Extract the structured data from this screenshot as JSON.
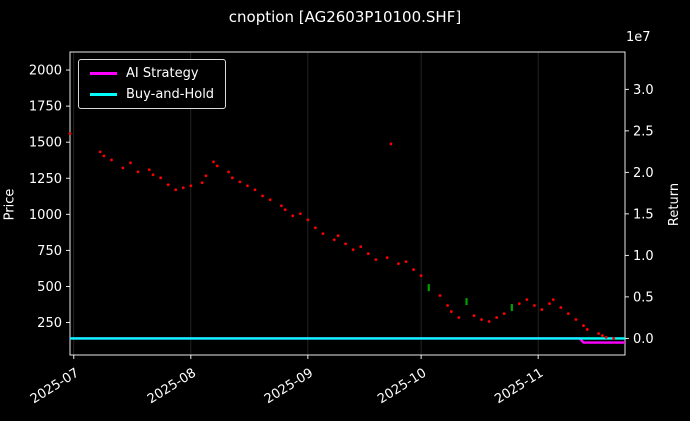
{
  "figure": {
    "title": "cnoption [AG2603P10100.SHF]",
    "background": "#000000",
    "text_color": "#ffffff"
  },
  "axes": {
    "left_label": "Price",
    "right_label": "Return",
    "offset_text": "1e7"
  },
  "legend": {
    "position": "upper-left",
    "items": [
      {
        "label": "AI Strategy",
        "color": "#ff00ff"
      },
      {
        "label": "Buy-and-Hold",
        "color": "#00ffff"
      }
    ]
  },
  "chart_data": {
    "type": "scatter",
    "title": "cnoption [AG2603P10100.SHF]",
    "xlabel": "",
    "ylabel_left": "Price",
    "ylabel_right": "Return",
    "right_axis_multiplier": "1e7",
    "grid": "vertical-faint",
    "grid_color": "#333333",
    "legend_position": "upper-left",
    "x_ticks": [
      "2025-07",
      "2025-08",
      "2025-09",
      "2025-10",
      "2025-11"
    ],
    "price_ticks": [
      250,
      500,
      750,
      1000,
      1250,
      1500,
      1750,
      2000
    ],
    "return_ticks": [
      0.0,
      0.5,
      1.0,
      1.5,
      2.0,
      2.5,
      3.0
    ],
    "price_ylim": [
      25,
      2125
    ],
    "return_ylim_1e7": [
      -0.2,
      3.45
    ],
    "x_range": [
      "2025-06-30",
      "2025-11-24"
    ],
    "point_colors": {
      "r": "#ff0000",
      "g": "#00a000"
    },
    "price_points": [
      [
        "2025-06-30",
        1560,
        "r"
      ],
      [
        "2025-07-08",
        1433,
        "r"
      ],
      [
        "2025-07-09",
        1405,
        "r"
      ],
      [
        "2025-07-11",
        1377,
        "r"
      ],
      [
        "2025-07-14",
        1322,
        "r"
      ],
      [
        "2025-07-16",
        1357,
        "r"
      ],
      [
        "2025-07-18",
        1295,
        "r"
      ],
      [
        "2025-07-21",
        1309,
        "r"
      ],
      [
        "2025-07-22",
        1274,
        "r"
      ],
      [
        "2025-07-24",
        1253,
        "r"
      ],
      [
        "2025-07-26",
        1205,
        "r"
      ],
      [
        "2025-07-28",
        1170,
        "r"
      ],
      [
        "2025-07-30",
        1184,
        "r"
      ],
      [
        "2025-08-01",
        1198,
        "r"
      ],
      [
        "2025-08-04",
        1219,
        "r"
      ],
      [
        "2025-08-05",
        1267,
        "r"
      ],
      [
        "2025-08-07",
        1364,
        "r"
      ],
      [
        "2025-08-08",
        1336,
        "r"
      ],
      [
        "2025-08-11",
        1294,
        "r"
      ],
      [
        "2025-08-12",
        1253,
        "r"
      ],
      [
        "2025-08-14",
        1225,
        "r"
      ],
      [
        "2025-08-16",
        1198,
        "r"
      ],
      [
        "2025-08-18",
        1170,
        "r"
      ],
      [
        "2025-08-20",
        1128,
        "r"
      ],
      [
        "2025-08-22",
        1101,
        "r"
      ],
      [
        "2025-08-25",
        1059,
        "r"
      ],
      [
        "2025-08-26",
        1032,
        "r"
      ],
      [
        "2025-08-28",
        990,
        "r"
      ],
      [
        "2025-08-30",
        1004,
        "r"
      ],
      [
        "2025-09-01",
        962,
        "r"
      ],
      [
        "2025-09-03",
        907,
        "r"
      ],
      [
        "2025-09-05",
        866,
        "r"
      ],
      [
        "2025-09-08",
        824,
        "r"
      ],
      [
        "2025-09-09",
        852,
        "r"
      ],
      [
        "2025-09-11",
        796,
        "r"
      ],
      [
        "2025-09-13",
        755,
        "r"
      ],
      [
        "2025-09-15",
        776,
        "r"
      ],
      [
        "2025-09-17",
        727,
        "r"
      ],
      [
        "2025-09-19",
        686,
        "r"
      ],
      [
        "2025-09-22",
        700,
        "r"
      ],
      [
        "2025-09-23",
        1488,
        "r"
      ],
      [
        "2025-09-25",
        658,
        "r"
      ],
      [
        "2025-09-27",
        672,
        "r"
      ],
      [
        "2025-09-29",
        617,
        "r"
      ],
      [
        "2025-10-01",
        575,
        "r"
      ],
      [
        "2025-10-03",
        492,
        "g"
      ],
      [
        "2025-10-06",
        437,
        "r"
      ],
      [
        "2025-10-08",
        368,
        "r"
      ],
      [
        "2025-10-09",
        326,
        "r"
      ],
      [
        "2025-10-11",
        285,
        "r"
      ],
      [
        "2025-10-13",
        395,
        "g"
      ],
      [
        "2025-10-15",
        298,
        "r"
      ],
      [
        "2025-10-17",
        271,
        "r"
      ],
      [
        "2025-10-19",
        257,
        "r"
      ],
      [
        "2025-10-21",
        285,
        "r"
      ],
      [
        "2025-10-23",
        312,
        "r"
      ],
      [
        "2025-10-25",
        354,
        "g"
      ],
      [
        "2025-10-27",
        381,
        "r"
      ],
      [
        "2025-10-29",
        409,
        "r"
      ],
      [
        "2025-10-31",
        368,
        "r"
      ],
      [
        "2025-11-02",
        340,
        "r"
      ],
      [
        "2025-11-04",
        381,
        "r"
      ],
      [
        "2025-11-05",
        409,
        "r"
      ],
      [
        "2025-11-07",
        354,
        "r"
      ],
      [
        "2025-11-09",
        312,
        "r"
      ],
      [
        "2025-11-11",
        271,
        "r"
      ],
      [
        "2025-11-13",
        229,
        "r"
      ],
      [
        "2025-11-14",
        202,
        "r"
      ],
      [
        "2025-11-17",
        174,
        "r"
      ],
      [
        "2025-11-18",
        160,
        "r"
      ],
      [
        "2025-11-19",
        147,
        "r"
      ],
      [
        "2025-11-21",
        140,
        "r"
      ]
    ],
    "series": [
      {
        "name": "AI Strategy",
        "color": "#ff00ff",
        "unit": "1e7",
        "points": [
          [
            "2025-06-30",
            0
          ],
          [
            "2025-11-12",
            0
          ],
          [
            "2025-11-13",
            -0.05
          ],
          [
            "2025-11-24",
            -0.05
          ]
        ]
      },
      {
        "name": "Buy-and-Hold",
        "color": "#00ffff",
        "unit": "1e7",
        "points": [
          [
            "2025-06-30",
            0
          ],
          [
            "2025-11-24",
            0
          ]
        ]
      }
    ]
  }
}
